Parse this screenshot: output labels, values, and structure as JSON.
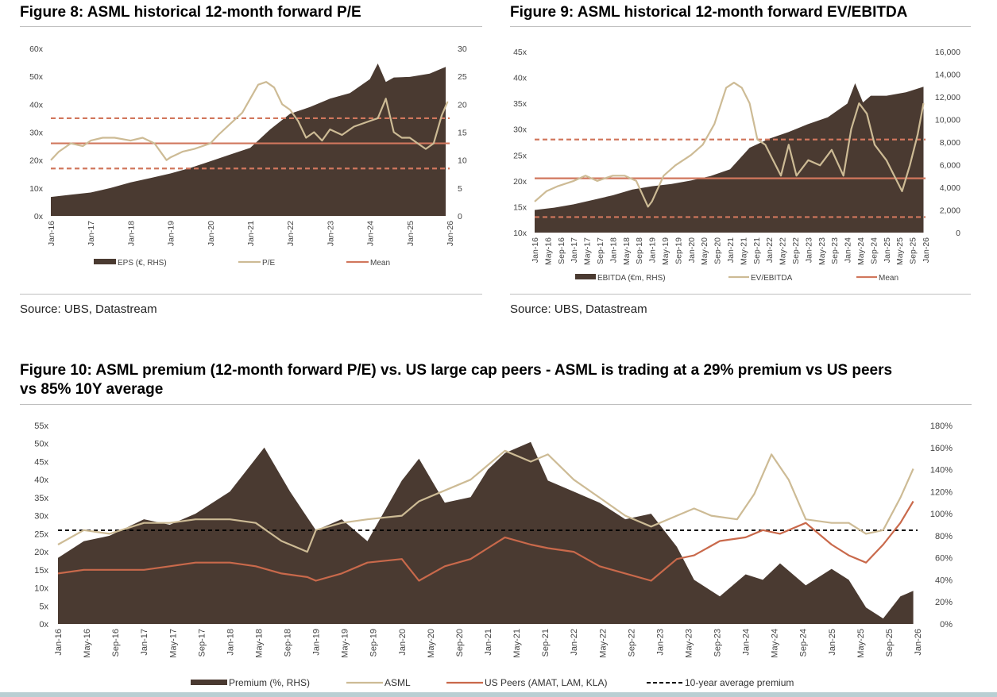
{
  "fig8": {
    "title": "Figure 8: ASML historical 12-month forward P/E",
    "source": "Source: UBS, Datastream"
  },
  "fig9": {
    "title": "Figure 9: ASML historical 12-month forward EV/EBITDA",
    "source": "Source: UBS, Datastream"
  },
  "fig10": {
    "title_line1": "Figure 10: ASML premium (12-month forward P/E) vs. US large cap peers - ASML is trading at a 29% premium vs US peers",
    "title_line2": "vs 85% 10Y average"
  },
  "colors": {
    "area": "#4a3a31",
    "light_line": "#cdbb95",
    "mean_line": "#d1775d",
    "peers_line": "#c9694b",
    "dashed_black": "#000000"
  },
  "chart_data": [
    {
      "id": "fig8",
      "type": "area+line",
      "x_ticks": [
        "Jan-16",
        "Jan-17",
        "Jan-18",
        "Jan-19",
        "Jan-20",
        "Jan-21",
        "Jan-22",
        "Jan-23",
        "Jan-24",
        "Jan-25",
        "Jan-26"
      ],
      "y_left": {
        "ticks": [
          "0x",
          "10x",
          "20x",
          "30x",
          "40x",
          "50x",
          "60x"
        ],
        "lim": [
          0,
          60
        ]
      },
      "y_right": {
        "ticks": [
          "0",
          "5",
          "10",
          "15",
          "20",
          "25",
          "30"
        ],
        "lim": [
          0,
          30
        ]
      },
      "series": [
        {
          "name": "EPS (€, RHS)",
          "kind": "area",
          "axis": "right",
          "x": [
            2016.0,
            2016.5,
            2017.0,
            2017.5,
            2018.0,
            2018.5,
            2019.0,
            2019.5,
            2020.0,
            2020.5,
            2021.0,
            2021.5,
            2022.0,
            2022.5,
            2023.0,
            2023.5,
            2024.0,
            2024.2,
            2024.4,
            2024.6,
            2025.0,
            2025.5,
            2025.9
          ],
          "values": [
            3.4,
            3.8,
            4.2,
            5.0,
            6.0,
            6.8,
            7.6,
            8.6,
            9.8,
            11.0,
            12.2,
            15.5,
            18.3,
            19.5,
            21.0,
            22.0,
            24.5,
            27.3,
            24.0,
            24.8,
            24.9,
            25.5,
            26.7
          ]
        },
        {
          "name": "P/E",
          "kind": "line",
          "axis": "left",
          "x": [
            2016.0,
            2016.2,
            2016.5,
            2016.8,
            2017.0,
            2017.3,
            2017.6,
            2018.0,
            2018.3,
            2018.6,
            2018.9,
            2019.0,
            2019.3,
            2019.6,
            2020.0,
            2020.2,
            2020.5,
            2020.8,
            2021.0,
            2021.2,
            2021.4,
            2021.6,
            2021.8,
            2022.0,
            2022.2,
            2022.4,
            2022.6,
            2022.8,
            2023.0,
            2023.3,
            2023.6,
            2024.0,
            2024.2,
            2024.4,
            2024.6,
            2024.8,
            2025.0,
            2025.2,
            2025.4,
            2025.6,
            2025.8,
            2025.95
          ],
          "values": [
            20,
            23,
            26,
            25,
            27,
            28,
            28,
            27,
            28,
            26,
            20,
            21,
            23,
            24,
            26,
            29,
            33,
            37,
            42,
            47,
            48,
            46,
            40,
            38,
            34,
            28,
            30,
            27,
            31,
            29,
            32,
            34,
            35,
            42,
            30,
            28,
            28,
            26,
            24,
            26,
            36,
            41
          ]
        },
        {
          "name": "Mean",
          "kind": "hline",
          "axis": "left",
          "value": 26.0
        },
        {
          "name": "+1 SD",
          "kind": "hline-dashed",
          "axis": "left",
          "value": 35.0
        },
        {
          "name": "-1 SD",
          "kind": "hline-dashed",
          "axis": "left",
          "value": 17.0
        }
      ],
      "legend": [
        "EPS (€, RHS)",
        "P/E",
        "Mean"
      ]
    },
    {
      "id": "fig9",
      "type": "area+line",
      "x_ticks": [
        "Jan-16",
        "May-16",
        "Sep-16",
        "Jan-17",
        "May-17",
        "Sep-17",
        "Jan-18",
        "May-18",
        "Sep-18",
        "Jan-19",
        "May-19",
        "Sep-19",
        "Jan-20",
        "May-20",
        "Sep-20",
        "Jan-21",
        "May-21",
        "Sep-21",
        "Jan-22",
        "May-22",
        "Sep-22",
        "Jan-23",
        "May-23",
        "Sep-23",
        "Jan-24",
        "May-24",
        "Sep-24",
        "Jan-25",
        "May-25",
        "Sep-25",
        "Jan-26"
      ],
      "y_left": {
        "ticks": [
          "10x",
          "15x",
          "20x",
          "25x",
          "30x",
          "35x",
          "40x",
          "45x"
        ],
        "lim": [
          10,
          45
        ]
      },
      "y_right": {
        "ticks": [
          "0",
          "2,000",
          "4,000",
          "6,000",
          "8,000",
          "10,000",
          "12,000",
          "14,000",
          "16,000"
        ],
        "lim": [
          0,
          16000
        ]
      },
      "series": [
        {
          "name": "EBITDA (€m, RHS)",
          "kind": "area",
          "axis": "right",
          "x": [
            2016.0,
            2016.5,
            2017.0,
            2017.5,
            2018.0,
            2018.5,
            2019.0,
            2019.5,
            2020.0,
            2020.5,
            2021.0,
            2021.5,
            2022.0,
            2022.5,
            2023.0,
            2023.5,
            2024.0,
            2024.2,
            2024.4,
            2024.6,
            2025.0,
            2025.5,
            2025.95
          ],
          "values": [
            2000,
            2200,
            2500,
            2900,
            3300,
            3800,
            4100,
            4300,
            4600,
            5000,
            5600,
            7500,
            8300,
            8900,
            9600,
            10200,
            11400,
            13200,
            11500,
            12100,
            12100,
            12400,
            12900
          ]
        },
        {
          "name": "EV/EBITDA",
          "kind": "line",
          "axis": "left",
          "x": [
            2016.0,
            2016.3,
            2016.6,
            2017.0,
            2017.3,
            2017.6,
            2018.0,
            2018.3,
            2018.6,
            2018.9,
            2019.0,
            2019.3,
            2019.6,
            2020.0,
            2020.3,
            2020.6,
            2020.9,
            2021.1,
            2021.3,
            2021.5,
            2021.7,
            2021.9,
            2022.1,
            2022.3,
            2022.5,
            2022.7,
            2023.0,
            2023.3,
            2023.6,
            2023.9,
            2024.1,
            2024.3,
            2024.5,
            2024.7,
            2025.0,
            2025.2,
            2025.4,
            2025.6,
            2025.8,
            2025.95
          ],
          "values": [
            16,
            18,
            19,
            20,
            21,
            20,
            21,
            21,
            20,
            15,
            16,
            21,
            23,
            25,
            27,
            31,
            38,
            39,
            38,
            35,
            28,
            27,
            24,
            21,
            27,
            21,
            24,
            23,
            26,
            21,
            30,
            35,
            33,
            27,
            24,
            21,
            18,
            23,
            29,
            35
          ]
        },
        {
          "name": "Mean",
          "kind": "hline",
          "axis": "left",
          "value": 20.5
        },
        {
          "name": "+1 SD",
          "kind": "hline-dashed",
          "axis": "left",
          "value": 28.0
        },
        {
          "name": "-1 SD",
          "kind": "hline-dashed",
          "axis": "left",
          "value": 13.0
        }
      ],
      "legend": [
        "EBITDA (€m, RHS)",
        "EV/EBITDA",
        "Mean"
      ]
    },
    {
      "id": "fig10",
      "type": "area+line",
      "x_ticks": [
        "Jan-16",
        "May-16",
        "Sep-16",
        "Jan-17",
        "May-17",
        "Sep-17",
        "Jan-18",
        "May-18",
        "Sep-18",
        "Jan-19",
        "May-19",
        "Sep-19",
        "Jan-20",
        "May-20",
        "Sep-20",
        "Jan-21",
        "May-21",
        "Sep-21",
        "Jan-22",
        "May-22",
        "Sep-22",
        "Jan-23",
        "May-23",
        "Sep-23",
        "Jan-24",
        "May-24",
        "Sep-24",
        "Jan-25",
        "May-25",
        "Sep-25",
        "Jan-26"
      ],
      "y_left": {
        "ticks": [
          "0x",
          "5x",
          "10x",
          "15x",
          "20x",
          "25x",
          "30x",
          "35x",
          "40x",
          "45x",
          "50x",
          "55x"
        ],
        "lim": [
          0,
          55
        ]
      },
      "y_right": {
        "ticks": [
          "0%",
          "20%",
          "40%",
          "60%",
          "80%",
          "100%",
          "120%",
          "140%",
          "160%",
          "180%"
        ],
        "lim": [
          0,
          180
        ]
      },
      "series": [
        {
          "name": "Premium (%, RHS)",
          "kind": "area",
          "axis": "right",
          "x": [
            2016.0,
            2016.3,
            2016.6,
            2017.0,
            2017.3,
            2017.6,
            2018.0,
            2018.2,
            2018.4,
            2018.7,
            2019.0,
            2019.3,
            2019.6,
            2020.0,
            2020.2,
            2020.5,
            2020.8,
            2021.0,
            2021.2,
            2021.5,
            2021.7,
            2022.0,
            2022.3,
            2022.6,
            2022.9,
            2023.2,
            2023.4,
            2023.7,
            2024.0,
            2024.2,
            2024.4,
            2024.7,
            2025.0,
            2025.2,
            2025.4,
            2025.6,
            2025.8,
            2025.95
          ],
          "values": [
            60,
            75,
            80,
            95,
            90,
            100,
            120,
            140,
            160,
            120,
            85,
            95,
            75,
            130,
            150,
            110,
            115,
            140,
            155,
            165,
            130,
            120,
            110,
            95,
            100,
            70,
            40,
            25,
            45,
            40,
            55,
            35,
            50,
            40,
            15,
            5,
            25,
            30
          ]
        },
        {
          "name": "ASML",
          "kind": "line",
          "axis": "left",
          "x": [
            2016.0,
            2016.3,
            2016.6,
            2017.0,
            2017.3,
            2017.6,
            2018.0,
            2018.3,
            2018.6,
            2018.9,
            2019.0,
            2019.3,
            2019.6,
            2020.0,
            2020.2,
            2020.5,
            2020.8,
            2021.0,
            2021.2,
            2021.5,
            2021.7,
            2022.0,
            2022.3,
            2022.6,
            2022.9,
            2023.2,
            2023.4,
            2023.6,
            2023.9,
            2024.1,
            2024.3,
            2024.5,
            2024.7,
            2025.0,
            2025.2,
            2025.4,
            2025.6,
            2025.8,
            2025.95
          ],
          "values": [
            22,
            26,
            25,
            28,
            28,
            29,
            29,
            28,
            23,
            20,
            26,
            28,
            29,
            30,
            34,
            37,
            40,
            44,
            48,
            45,
            47,
            40,
            35,
            30,
            27,
            30,
            32,
            30,
            29,
            36,
            47,
            40,
            29,
            28,
            28,
            25,
            26,
            35,
            43
          ]
        },
        {
          "name": "US Peers (AMAT, LAM, KLA)",
          "kind": "line",
          "axis": "left",
          "x": [
            2016.0,
            2016.3,
            2016.6,
            2017.0,
            2017.3,
            2017.6,
            2018.0,
            2018.3,
            2018.6,
            2018.9,
            2019.0,
            2019.3,
            2019.6,
            2020.0,
            2020.2,
            2020.5,
            2020.8,
            2021.0,
            2021.2,
            2021.5,
            2021.7,
            2022.0,
            2022.3,
            2022.6,
            2022.9,
            2023.2,
            2023.4,
            2023.7,
            2024.0,
            2024.2,
            2024.4,
            2024.7,
            2025.0,
            2025.2,
            2025.4,
            2025.6,
            2025.8,
            2025.95
          ],
          "values": [
            14,
            15,
            15,
            15,
            16,
            17,
            17,
            16,
            14,
            13,
            12,
            14,
            17,
            18,
            12,
            16,
            18,
            21,
            24,
            22,
            21,
            20,
            16,
            14,
            12,
            18,
            19,
            23,
            24,
            26,
            25,
            28,
            22,
            19,
            17,
            22,
            28,
            34
          ]
        },
        {
          "name": "10-year average premium",
          "kind": "hline-dashed",
          "axis": "right",
          "value": 85
        }
      ],
      "legend": [
        "Premium (%, RHS)",
        "ASML",
        "US Peers (AMAT, LAM, KLA)",
        "10-year average premium"
      ]
    }
  ]
}
